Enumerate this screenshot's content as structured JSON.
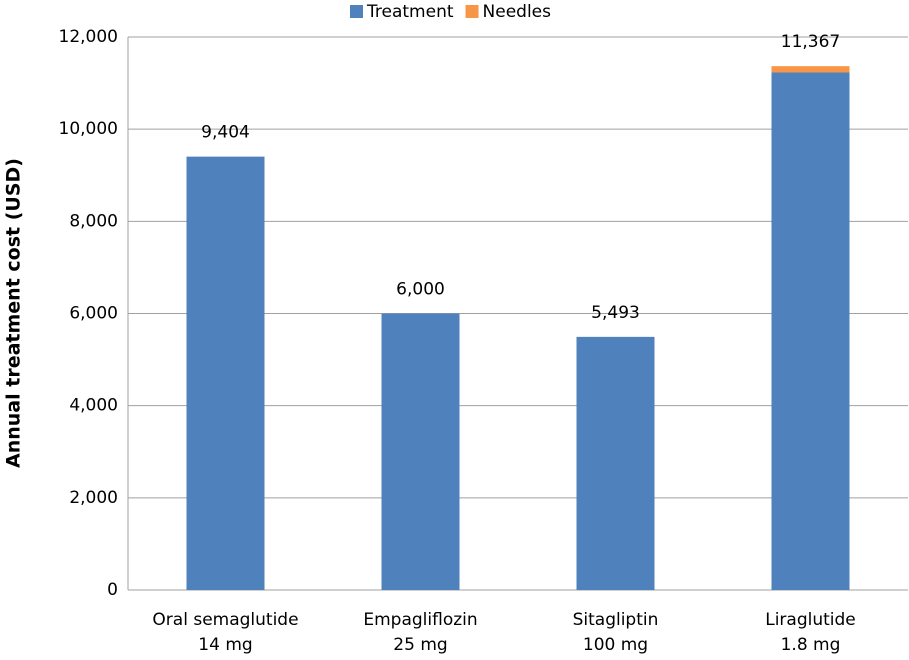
{
  "chart_data": {
    "type": "stacked_bar",
    "y_label": "Annual treatment cost (USD)",
    "categories": [
      [
        "Oral semaglutide",
        "14 mg"
      ],
      [
        "Empagliflozin",
        "25 mg"
      ],
      [
        "Sitagliptin",
        "100 mg"
      ],
      [
        "Liraglutide",
        "1.8 mg"
      ]
    ],
    "series": [
      {
        "name": "Treatment",
        "color": "#4f81bd",
        "values": [
          9404,
          6000,
          5493,
          11230
        ]
      },
      {
        "name": "Needles",
        "color": "#f79646",
        "values": [
          0,
          0,
          0,
          137
        ]
      }
    ],
    "totals": [
      9404,
      6000,
      5493,
      11367
    ],
    "total_labels": [
      "9,404",
      "6,000",
      "5,493",
      "11,367"
    ],
    "ylim": [
      0,
      12000
    ],
    "yticks": [
      0,
      {
        "value": 2000,
        "label": "2,000"
      },
      {
        "value": 4000,
        "label": "4,000"
      },
      {
        "value": 6000,
        "label": "6,000"
      },
      {
        "value": 8000,
        "label": "8,000"
      },
      {
        "value": 10000,
        "label": "10,000"
      },
      {
        "value": 12000,
        "label": "12,000"
      }
    ],
    "grid": true,
    "legend": "top"
  }
}
